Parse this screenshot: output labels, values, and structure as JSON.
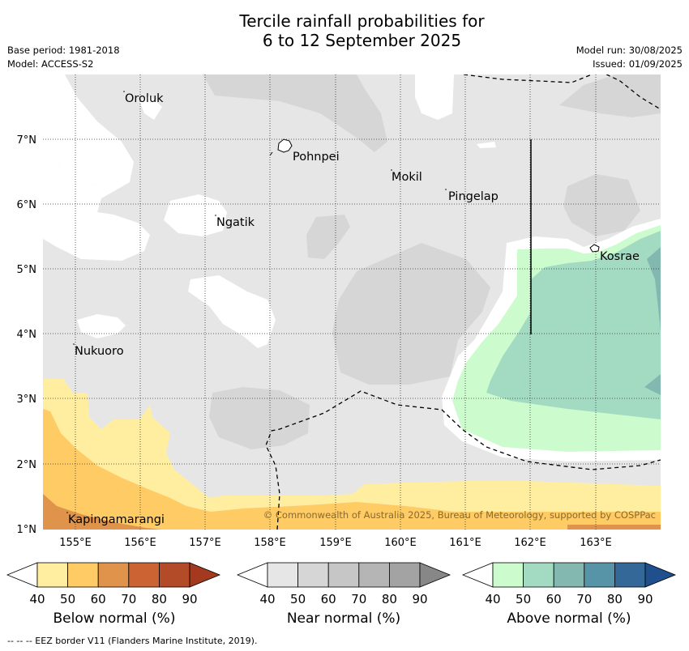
{
  "title_line1": "Tercile rainfall probabilities for",
  "title_line2": "6 to 12 September 2025",
  "base_period": "Base period: 1981-2018",
  "model": "Model: ACCESS-S2",
  "model_run": "Model run: 30/08/2025",
  "issued": "Issued: 01/09/2025",
  "lat_labels": [
    "7°N",
    "6°N",
    "5°N",
    "4°N",
    "3°N",
    "2°N",
    "1°N"
  ],
  "lon_labels": [
    "155°E",
    "156°E",
    "157°E",
    "158°E",
    "159°E",
    "160°E",
    "161°E",
    "162°E",
    "163°E"
  ],
  "places": [
    "Oroluk",
    "Pohnpei",
    "Mokil",
    "Pingelap",
    "Ngatik",
    "Kosrae",
    "Nukuoro",
    "Kapingamarangi"
  ],
  "copyright": "© Commonwealth of Australia 2025, Bureau of Meteorology, supported by COSPPac",
  "legends": [
    {
      "title": "Below normal (%)",
      "ticks": [
        "40",
        "50",
        "60",
        "70",
        "80",
        "90"
      ],
      "colors": [
        "#ffffff",
        "#ffeda0",
        "#fecb65",
        "#e0934a",
        "#cb6333",
        "#b34a28",
        "#a33a20"
      ]
    },
    {
      "title": "Near normal (%)",
      "ticks": [
        "40",
        "50",
        "60",
        "70",
        "80",
        "90"
      ],
      "colors": [
        "#ffffff",
        "#e6e6e6",
        "#d6d6d6",
        "#c6c6c6",
        "#b5b5b5",
        "#a3a3a3",
        "#878787"
      ]
    },
    {
      "title": "Above normal (%)",
      "ticks": [
        "40",
        "50",
        "60",
        "70",
        "80",
        "90"
      ],
      "colors": [
        "#ffffff",
        "#ccfcce",
        "#a3dbc2",
        "#82b8b0",
        "#5794a8",
        "#336899",
        "#1f4f8c"
      ]
    }
  ],
  "footnote": "--  --  -- EEZ border V11 (Flanders Marine Institute, 2019)."
}
